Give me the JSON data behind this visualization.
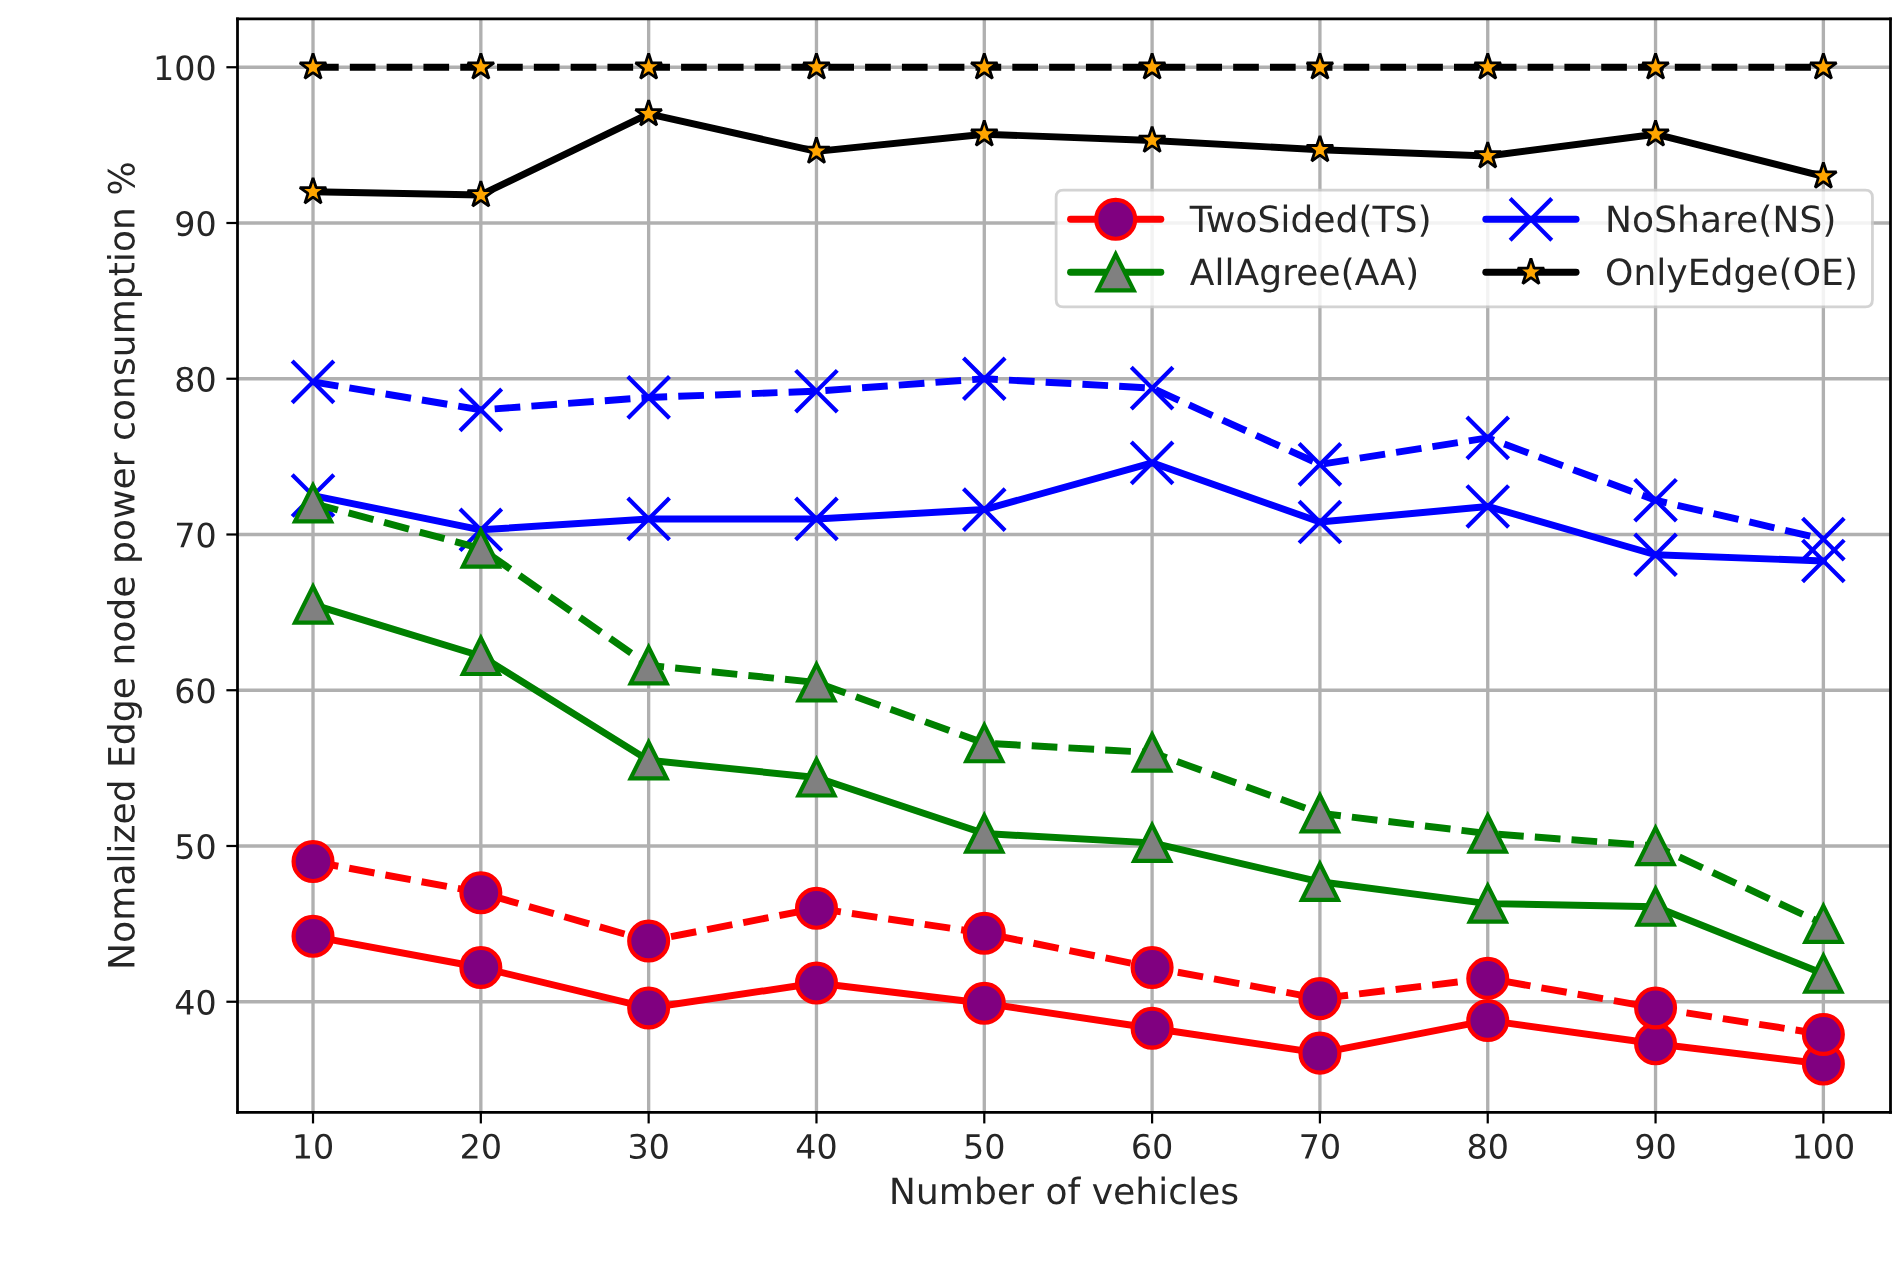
{
  "chart_data": {
    "type": "line",
    "xlabel": "Number of vehicles",
    "ylabel": "Nomalized Edge node power consumption %",
    "x": [
      10,
      20,
      30,
      40,
      50,
      60,
      70,
      80,
      90,
      100
    ],
    "xlim": [
      5.5,
      104.0
    ],
    "xticks": [
      10,
      20,
      30,
      40,
      50,
      60,
      70,
      80,
      90,
      100
    ],
    "ylim": [
      32.9,
      103.1
    ],
    "yticks": [
      40,
      50,
      60,
      70,
      80,
      90,
      100
    ],
    "grid": true,
    "legend": "top right",
    "series": [
      {
        "name": "TwoSided(TS)",
        "color": "#ff0000",
        "marker": "circle",
        "line_style": "solid",
        "values": [
          44.2,
          42.2,
          39.6,
          41.2,
          39.9,
          38.3,
          36.7,
          38.8,
          37.3,
          36.0
        ]
      },
      {
        "name": "AllAgree(AA)",
        "color": "#008000",
        "marker": "triangle",
        "line_style": "solid",
        "values": [
          65.5,
          62.2,
          55.5,
          54.4,
          50.8,
          50.2,
          47.7,
          46.3,
          46.1,
          41.8
        ]
      },
      {
        "name": "NoShare(NS)",
        "color": "#0000ff",
        "marker": "cross",
        "line_style": "solid",
        "values": [
          72.5,
          70.3,
          71.0,
          71.0,
          71.6,
          74.6,
          70.8,
          71.8,
          68.7,
          68.3
        ]
      },
      {
        "name": "OnlyEdge(OE)",
        "color": "#000000",
        "marker": "star",
        "line_style": "solid",
        "values": [
          92.0,
          91.8,
          97.0,
          94.6,
          95.7,
          95.3,
          94.7,
          94.3,
          95.7,
          93.0
        ]
      },
      {
        "color": "#ff0000",
        "marker": "circle",
        "line_style": "dashed",
        "values": [
          49.0,
          47.0,
          43.9,
          46.0,
          44.4,
          42.2,
          40.2,
          41.5,
          39.6,
          37.9
        ]
      },
      {
        "color": "#008000",
        "marker": "triangle",
        "line_style": "dashed",
        "values": [
          72.0,
          69.1,
          61.6,
          60.5,
          56.6,
          56.0,
          52.1,
          50.8,
          50.0,
          45.0
        ]
      },
      {
        "color": "#0000ff",
        "marker": "cross",
        "line_style": "dashed",
        "values": [
          79.8,
          78.0,
          78.8,
          79.2,
          80.0,
          79.4,
          74.5,
          76.2,
          72.2,
          69.7
        ]
      },
      {
        "color": "#000000",
        "marker": "star",
        "line_style": "dashed",
        "values": [
          100,
          100,
          100,
          100,
          100,
          100,
          100,
          100,
          100,
          100
        ]
      }
    ]
  }
}
